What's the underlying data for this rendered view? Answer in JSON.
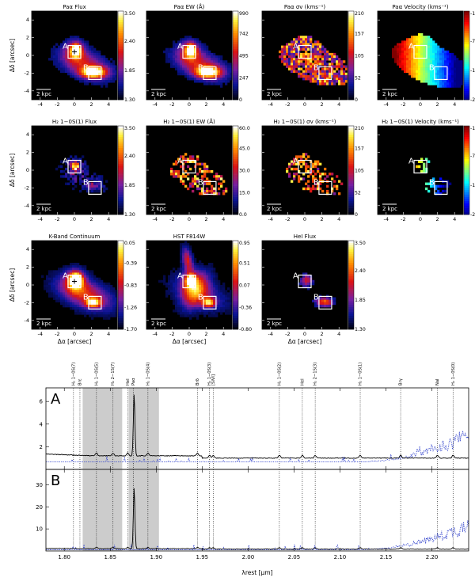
{
  "colors": {
    "map_background": "#000000",
    "box": "#ffffff",
    "spectrum_solid": "#000000",
    "spectrum_dotted": "#3344cc",
    "shade": "#cccccc"
  },
  "axes": {
    "ra_label": "Δα [arcsec]",
    "dec_label": "Δδ [arcsec]",
    "ticks": [
      "-4",
      "-2",
      "0",
      "2",
      "4"
    ]
  },
  "scalebar_label": "2 kpc",
  "region_labels": [
    "A",
    "B"
  ],
  "panels": [
    {
      "title": "Paα Flux",
      "cbar": [
        "3.50",
        "2.40",
        "1.85",
        "1.30"
      ],
      "kind": "flux"
    },
    {
      "title": "Paα EW (Å)",
      "cbar": [
        "990",
        "742",
        "495",
        "247",
        "0"
      ],
      "kind": "flux"
    },
    {
      "title": "Paα σv (kms⁻¹)",
      "cbar": [
        "210",
        "157",
        "105",
        "52",
        "0"
      ],
      "kind": "sigma"
    },
    {
      "title": "Paα Velocity (kms⁻¹)",
      "cbar": [
        "-120",
        "-70",
        "-165",
        "-260"
      ],
      "kind": "velocity"
    },
    {
      "title": "H₂ 1−0S(1) Flux",
      "cbar": [
        "3.50",
        "2.40",
        "1.85",
        "1.30"
      ],
      "kind": "h2flux"
    },
    {
      "title": "H₂ 1−0S(1) EW (Å)",
      "cbar": [
        "60.0",
        "45.0",
        "30.0",
        "15.0",
        "0.0"
      ],
      "kind": "h2sparse"
    },
    {
      "title": "H₂ 1−0S(1) σv (kms⁻¹)",
      "cbar": [
        "210",
        "157",
        "105",
        "52",
        "0"
      ],
      "kind": "h2sparse"
    },
    {
      "title": "H₂ 1−0S(1) Velocity (kms⁻¹)",
      "cbar": [
        "-120",
        "-70",
        "-165",
        "-260"
      ],
      "kind": "h2vel"
    },
    {
      "title": "K-Band Continuum",
      "cbar": [
        "0.05",
        "-0.39",
        "-0.83",
        "-1.26",
        "-1.70"
      ],
      "kind": "cont"
    },
    {
      "title": "HST F814W",
      "cbar": [
        "0.95",
        "0.51",
        "0.07",
        "-0.36",
        "-0.80"
      ],
      "kind": "hst"
    },
    {
      "title": "HeI Flux",
      "cbar": [
        "3.50",
        "2.40",
        "1.85",
        "1.30"
      ],
      "kind": "hei"
    }
  ],
  "chart_data": {
    "type": "line",
    "xlabel": "λrest [μm]",
    "xlim": [
      1.78,
      2.24
    ],
    "x_ticks": [
      "1.80",
      "1.85",
      "1.90",
      "1.95",
      "2.00",
      "2.05",
      "2.10",
      "2.15",
      "2.20"
    ],
    "shaded_ranges": [
      [
        1.82,
        1.863
      ],
      [
        1.87,
        1.903
      ]
    ],
    "line_ids": [
      {
        "label": "H₂ 1−0S(5)",
        "x": 1.835
      },
      {
        "label": "H₂ 2−1S(7)",
        "x": 1.853
      },
      {
        "label": "HeI",
        "x": 1.869
      },
      {
        "label": "Paα",
        "x": 1.875
      },
      {
        "label": "H₂ 1−0S(4)",
        "x": 1.891
      },
      {
        "label": "Brδ",
        "x": 1.945
      },
      {
        "label": "H₂ 1−0S(3)",
        "x": 1.958
      },
      {
        "label": "[SiVI]",
        "x": 1.962
      },
      {
        "label": "H₂ 1−0S(2)",
        "x": 2.034
      },
      {
        "label": "HeI",
        "x": 2.059
      },
      {
        "label": "H₂ 2−1S(3)",
        "x": 2.073
      },
      {
        "label": "H₂ 1−0S(1)",
        "x": 2.122
      },
      {
        "label": "Brγ",
        "x": 2.166
      },
      {
        "label": "NaI",
        "x": 2.206
      },
      {
        "label": "H₂ 1−0S(0)",
        "x": 2.223
      }
    ],
    "extra_line_ids": [
      {
        "label": "H₂ 1−0S(7)",
        "x": 1.81
      },
      {
        "label": "Brε",
        "x": 1.817
      }
    ],
    "panels": [
      {
        "label": "A",
        "ylim": [
          0,
          7.2
        ],
        "y_ticks": [
          2,
          4,
          6
        ],
        "peak": {
          "x": 1.876,
          "y": 6.7
        },
        "continuum": 1.2
      },
      {
        "label": "B",
        "ylim": [
          0,
          37
        ],
        "y_ticks": [
          10,
          20,
          30
        ],
        "peak": {
          "x": 1.876,
          "y": 29
        },
        "continuum": 1.0
      }
    ]
  }
}
